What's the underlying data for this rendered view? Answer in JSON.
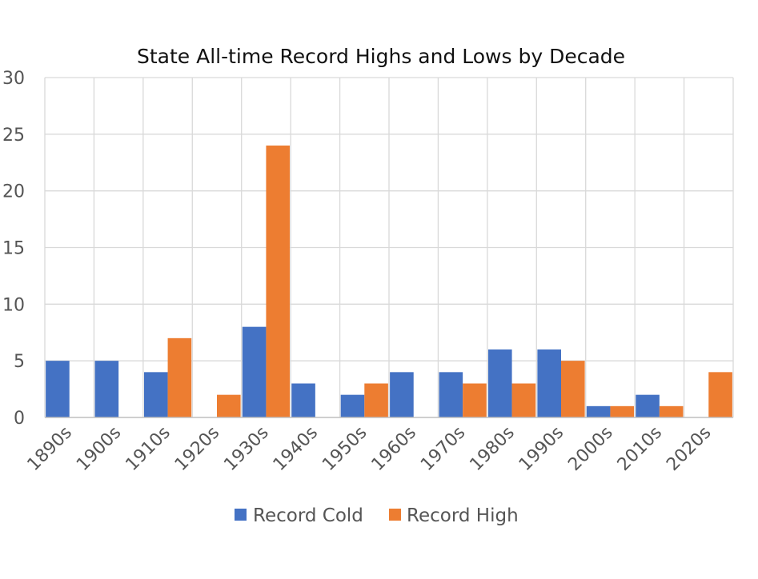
{
  "chart_data": {
    "type": "bar",
    "title": "State All-time Record Highs and Lows by Decade",
    "xlabel": "",
    "ylabel": "",
    "categories": [
      "1890s",
      "1900s",
      "1910s",
      "1920s",
      "1930s",
      "1940s",
      "1950s",
      "1960s",
      "1970s",
      "1980s",
      "1990s",
      "2000s",
      "2010s",
      "2020s"
    ],
    "series": [
      {
        "name": "Record Cold",
        "color": "#4472C4",
        "values": [
          5,
          5,
          4,
          0,
          8,
          3,
          2,
          4,
          4,
          6,
          6,
          1,
          2,
          0
        ]
      },
      {
        "name": "Record High",
        "color": "#ED7D31",
        "values": [
          0,
          0,
          7,
          2,
          24,
          0,
          3,
          0,
          3,
          3,
          5,
          1,
          1,
          4
        ]
      }
    ],
    "ylim": [
      0,
      30
    ],
    "yticks": [
      0,
      5,
      10,
      15,
      20,
      25,
      30
    ],
    "grid": true,
    "legend": "bottom"
  }
}
